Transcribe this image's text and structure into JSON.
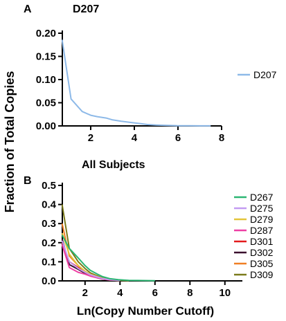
{
  "chart_data": [
    {
      "type": "line",
      "panel_label": "A",
      "title": "D207",
      "xlabel": "",
      "ylabel": "",
      "xlim": [
        0.7,
        8
      ],
      "ylim": [
        0,
        0.2
      ],
      "xticks": [
        2,
        4,
        6,
        8
      ],
      "yticks": [
        0.0,
        0.05,
        0.1,
        0.15,
        0.2
      ],
      "ytick_labels": [
        "0.00",
        "0.05",
        "0.10",
        "0.15",
        "0.20"
      ],
      "grid": false,
      "legend": "right",
      "series": [
        {
          "name": "D207",
          "color": "#8db9e8",
          "x": [
            0.69,
            1.1,
            1.61,
            2.0,
            2.3,
            2.71,
            3.0,
            3.4,
            3.9,
            4.3,
            4.6,
            5.0,
            5.5,
            6.0,
            6.5,
            7.0,
            7.5
          ],
          "y": [
            0.186,
            0.058,
            0.031,
            0.023,
            0.02,
            0.017,
            0.013,
            0.01,
            0.007,
            0.005,
            0.003,
            0.002,
            0.001,
            0.0005,
            0.0003,
            0.0002,
            0.0001
          ]
        }
      ]
    },
    {
      "type": "line",
      "panel_label": "B",
      "title": "All  Subjects",
      "xlabel": "Ln(Copy Number Cutoff)",
      "ylabel": "",
      "xlim": [
        0.7,
        11
      ],
      "ylim": [
        0,
        0.5
      ],
      "xticks": [
        2,
        4,
        6,
        8,
        10
      ],
      "yticks": [
        0.0,
        0.1,
        0.2,
        0.3,
        0.4,
        0.5
      ],
      "ytick_labels": [
        "0.0",
        "0.1",
        "0.2",
        "0.3",
        "0.4",
        "0.5"
      ],
      "grid": false,
      "legend": "right",
      "series": [
        {
          "name": "D267",
          "color": "#2bb673",
          "x": [
            0.69,
            1.1,
            1.61,
            2.0,
            2.3,
            2.71,
            3.0,
            3.4,
            3.9,
            4.5,
            5.0,
            6.0
          ],
          "y": [
            0.24,
            0.17,
            0.12,
            0.08,
            0.055,
            0.035,
            0.022,
            0.012,
            0.006,
            0.003,
            0.002,
            0.001
          ]
        },
        {
          "name": "D275",
          "color": "#c39bf2",
          "x": [
            0.69,
            1.1,
            1.61,
            2.0,
            2.3,
            2.71,
            3.0,
            3.4,
            4.0
          ],
          "y": [
            0.21,
            0.1,
            0.065,
            0.045,
            0.032,
            0.02,
            0.012,
            0.006,
            0.002
          ]
        },
        {
          "name": "D279",
          "color": "#e3c53a",
          "x": [
            0.69,
            1.1,
            1.61,
            2.0,
            2.3,
            2.71,
            3.0,
            3.4,
            4.0
          ],
          "y": [
            0.25,
            0.14,
            0.08,
            0.05,
            0.035,
            0.022,
            0.013,
            0.006,
            0.002
          ]
        },
        {
          "name": "D287",
          "color": "#ee3fa3",
          "x": [
            0.69,
            1.1,
            1.61,
            2.0,
            2.3,
            2.71,
            3.0,
            3.4,
            4.0
          ],
          "y": [
            0.19,
            0.07,
            0.045,
            0.035,
            0.025,
            0.016,
            0.01,
            0.005,
            0.002
          ]
        },
        {
          "name": "D301",
          "color": "#e31a1c",
          "x": [
            0.69,
            1.1,
            1.61,
            2.0,
            2.3,
            2.71,
            3.0,
            3.4,
            4.0
          ],
          "y": [
            0.2,
            0.1,
            0.07,
            0.045,
            0.03,
            0.018,
            0.01,
            0.005,
            0.002
          ]
        },
        {
          "name": "D302",
          "color": "#3a0f2e",
          "x": [
            0.69,
            1.1,
            1.61,
            2.0,
            2.3,
            2.71,
            3.0,
            3.4,
            4.0
          ],
          "y": [
            0.22,
            0.085,
            0.06,
            0.04,
            0.027,
            0.016,
            0.009,
            0.004,
            0.002
          ]
        },
        {
          "name": "D305",
          "color": "#f07f24",
          "x": [
            0.69,
            1.1,
            1.61,
            2.0,
            2.3,
            2.71,
            3.0,
            3.4,
            4.0
          ],
          "y": [
            0.3,
            0.13,
            0.08,
            0.05,
            0.032,
            0.018,
            0.01,
            0.005,
            0.002
          ]
        },
        {
          "name": "D309",
          "color": "#7a7a1a",
          "x": [
            0.69,
            1.1,
            1.61,
            2.0,
            2.3,
            2.71,
            3.0,
            3.4,
            4.0,
            4.5
          ],
          "y": [
            0.4,
            0.17,
            0.1,
            0.065,
            0.042,
            0.026,
            0.015,
            0.008,
            0.003,
            0.001
          ]
        }
      ]
    }
  ],
  "shared_ylabel": "Fraction of  Total  Copies"
}
